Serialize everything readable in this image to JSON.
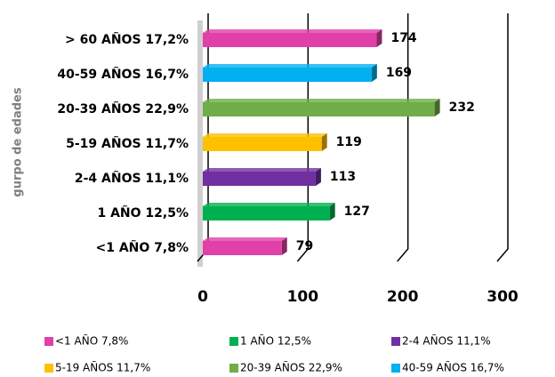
{
  "chart_data": {
    "type": "bar",
    "orientation": "horizontal",
    "y_label": "gurpo de edades",
    "categories": [
      "<1 AÑO 7,8%",
      "1 AÑO 12,5%",
      "2-4 AÑOS 11,1%",
      "5-19 AÑOS 11,7%",
      "20-39 AÑOS 22,9%",
      "40-59 AÑOS 16,7%",
      "> 60 AÑOS 17,2%"
    ],
    "values": [
      79,
      127,
      113,
      119,
      232,
      169,
      174
    ],
    "colors": [
      "#e040a8",
      "#00b050",
      "#7030a0",
      "#ffc000",
      "#70ad47",
      "#00b0f0",
      "#e040a8"
    ],
    "xlim": [
      0,
      300
    ],
    "xticks": [
      0,
      100,
      200,
      300
    ],
    "grid": true,
    "legend": [
      {
        "name": "<1 AÑO 7,8%",
        "color": "#e040a8"
      },
      {
        "name": "1 AÑO 12,5%",
        "color": "#00b050"
      },
      {
        "name": "2-4 AÑOS 11,1%",
        "color": "#7030a0"
      },
      {
        "name": "5-19 AÑOS 11,7%",
        "color": "#ffc000"
      },
      {
        "name": "20-39 AÑOS 22,9%",
        "color": "#70ad47"
      },
      {
        "name": "40-59 AÑOS 16,7%",
        "color": "#00b0f0"
      }
    ]
  }
}
